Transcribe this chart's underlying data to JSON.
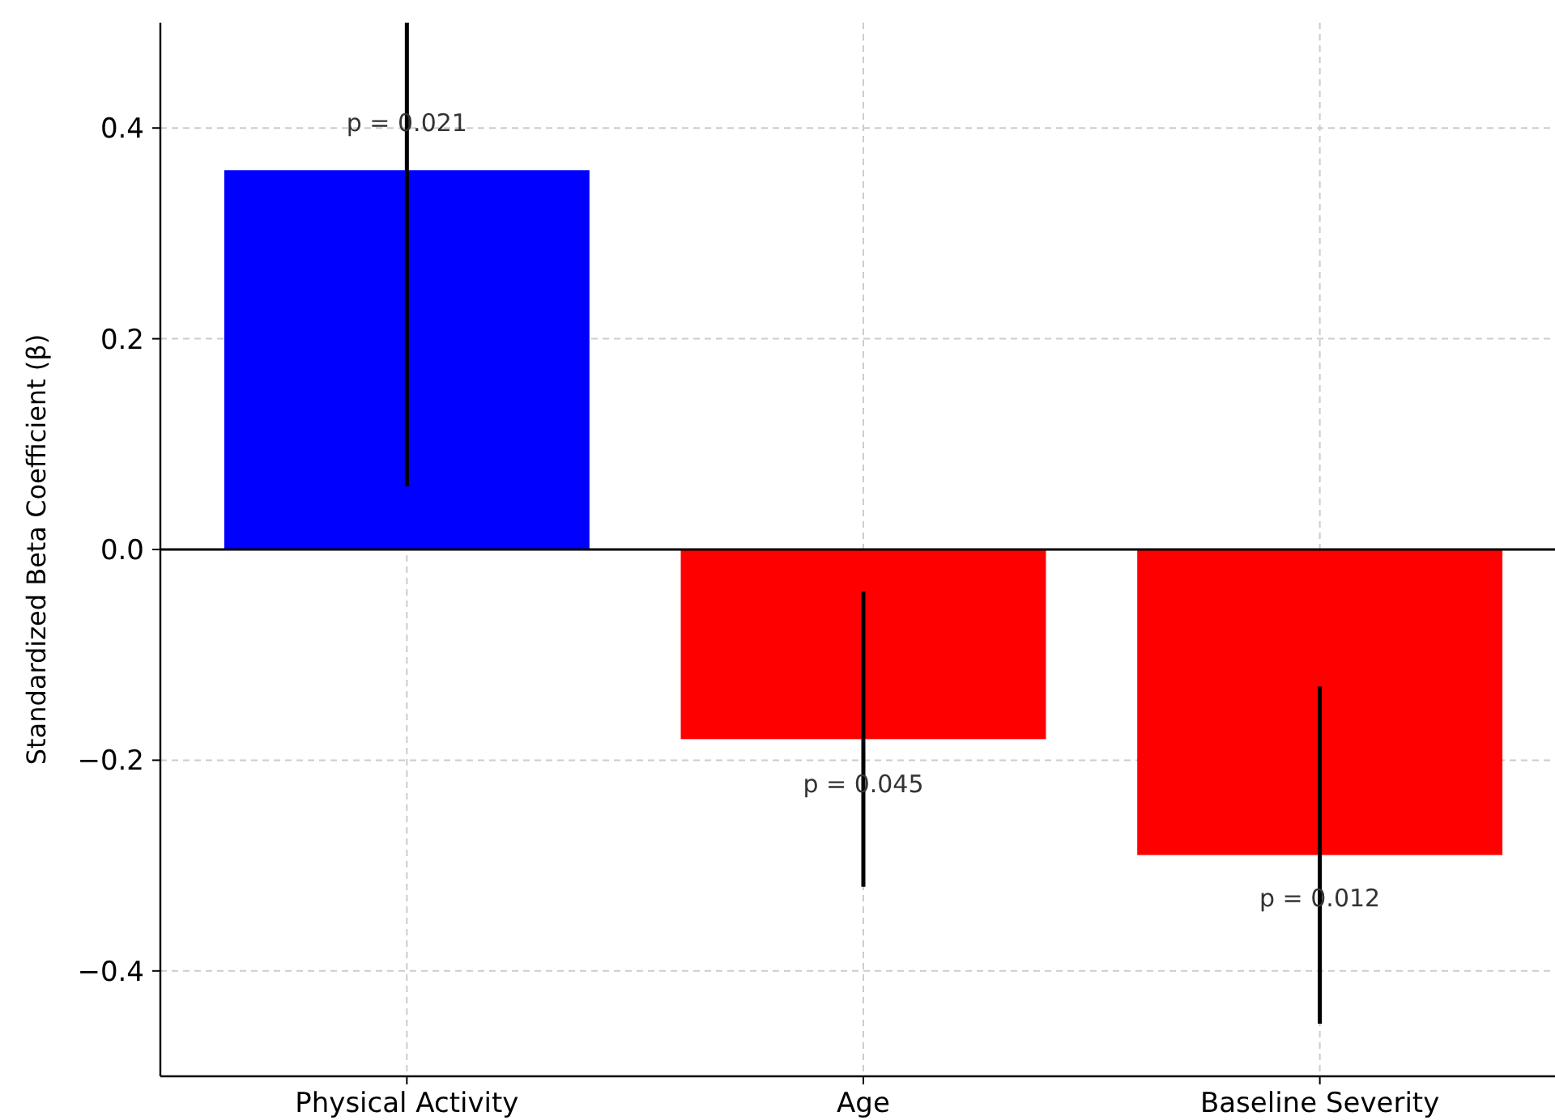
{
  "chart_data": {
    "type": "bar",
    "ylabel": "Standardized Beta Coefficient (β)",
    "categories": [
      "Physical Activity",
      "Age",
      "Baseline Severity"
    ],
    "values": [
      0.36,
      -0.18,
      -0.29
    ],
    "colors": [
      "#0000ff",
      "#ff0000",
      "#ff0000"
    ],
    "errors": [
      [
        0.06,
        0.5
      ],
      [
        -0.32,
        -0.04
      ],
      [
        -0.45,
        -0.13
      ]
    ],
    "ylim": [
      -0.5,
      0.5
    ],
    "yticks": [
      {
        "value": -0.4,
        "label": "−0.4"
      },
      {
        "value": -0.2,
        "label": "−0.2"
      },
      {
        "value": 0,
        "label": "0.0"
      },
      {
        "value": 0.2,
        "label": "0.2"
      },
      {
        "value": 0.4,
        "label": "0.4"
      }
    ],
    "grid": true,
    "ref_lines": [
      {
        "axis": "y",
        "value": 0,
        "color": "#000000"
      }
    ],
    "annotations": [
      {
        "text": "p = 0.021",
        "x": "Physical Activity",
        "y": 0.405
      },
      {
        "text": "p = 0.045",
        "x": "Age",
        "y": -0.222
      },
      {
        "text": "p = 0.012",
        "x": "Baseline Severity",
        "y": -0.331
      }
    ]
  }
}
